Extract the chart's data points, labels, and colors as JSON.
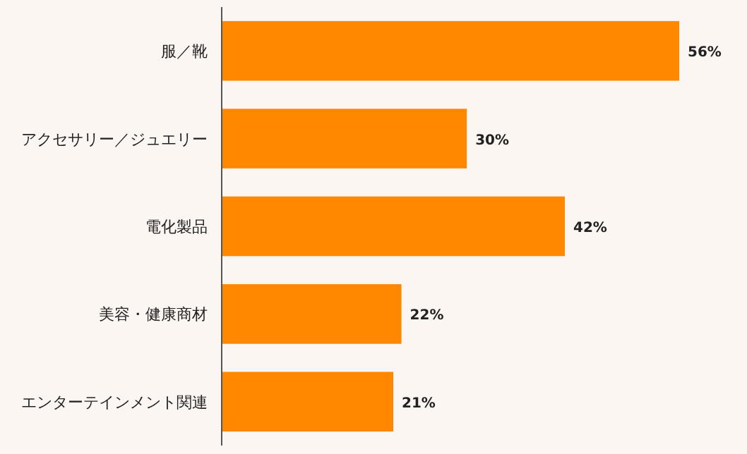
{
  "chart_data": {
    "type": "bar",
    "orientation": "horizontal",
    "categories": [
      "服／靴",
      "アクセサリー／ジュエリー",
      "電化製品",
      "美容・健康商材",
      "エンターテインメント関連"
    ],
    "values": [
      56,
      30,
      42,
      22,
      21
    ],
    "value_labels": [
      "56%",
      "30%",
      "42%",
      "22%",
      "21%"
    ],
    "color": "#ff8800"
  }
}
